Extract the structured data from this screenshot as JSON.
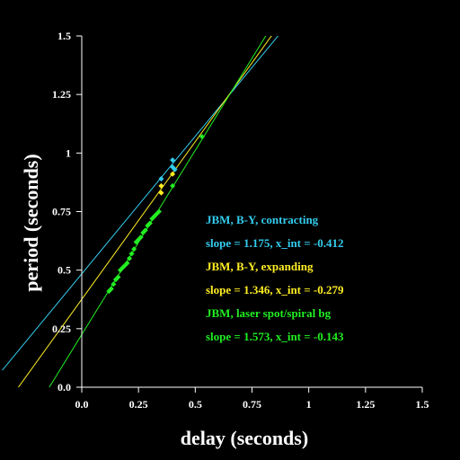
{
  "chart_data": {
    "type": "scatter",
    "xlabel": "delay (seconds)",
    "ylabel": "period (seconds)",
    "xlim": [
      0,
      1.5
    ],
    "ylim": [
      0,
      1.5
    ],
    "xticks": [
      0,
      0.25,
      0.5,
      0.75,
      1,
      1.25,
      1.5
    ],
    "xtick_labels": [
      "0.0",
      "0.25",
      "0.5",
      "0.75",
      "1",
      "1.25",
      "1.5"
    ],
    "yticks": [
      0,
      0.25,
      0.5,
      0.75,
      1,
      1.25,
      1.5
    ],
    "ytick_labels": [
      "0.0",
      "0.25",
      "0.5",
      "0.75",
      "1",
      "1.25",
      "1.5"
    ],
    "grid": false,
    "legend_position": "center-right",
    "series": [
      {
        "name": "JBM, B-Y, contracting",
        "fit_label": "slope = 1.175, x_int = -0.412",
        "color": "#33ccee",
        "slope": 1.175,
        "x_int": -0.412,
        "points": [
          [
            0.35,
            0.89
          ],
          [
            0.4,
            0.97
          ],
          [
            0.4,
            0.94
          ],
          [
            0.41,
            0.93
          ]
        ]
      },
      {
        "name": "JBM, B-Y, expanding",
        "fit_label": "slope = 1.346, x_int = -0.279",
        "color": "#ffee22",
        "slope": 1.346,
        "x_int": -0.279,
        "points": [
          [
            0.35,
            0.86
          ],
          [
            0.35,
            0.83
          ],
          [
            0.4,
            0.91
          ]
        ]
      },
      {
        "name": "JBM, laser spot/spiral bg",
        "fit_label": "slope = 1.573, x_int = -0.143",
        "color": "#22ee22",
        "slope": 1.573,
        "x_int": -0.143,
        "points": [
          [
            0.12,
            0.41
          ],
          [
            0.13,
            0.42
          ],
          [
            0.14,
            0.44
          ],
          [
            0.15,
            0.46
          ],
          [
            0.16,
            0.47
          ],
          [
            0.17,
            0.5
          ],
          [
            0.18,
            0.51
          ],
          [
            0.19,
            0.52
          ],
          [
            0.2,
            0.53
          ],
          [
            0.21,
            0.55
          ],
          [
            0.22,
            0.57
          ],
          [
            0.23,
            0.59
          ],
          [
            0.24,
            0.62
          ],
          [
            0.25,
            0.63
          ],
          [
            0.26,
            0.64
          ],
          [
            0.27,
            0.66
          ],
          [
            0.28,
            0.67
          ],
          [
            0.29,
            0.69
          ],
          [
            0.3,
            0.7
          ],
          [
            0.31,
            0.72
          ],
          [
            0.32,
            0.73
          ],
          [
            0.33,
            0.74
          ],
          [
            0.34,
            0.75
          ],
          [
            0.4,
            0.86
          ],
          [
            0.53,
            1.07
          ]
        ]
      }
    ]
  }
}
